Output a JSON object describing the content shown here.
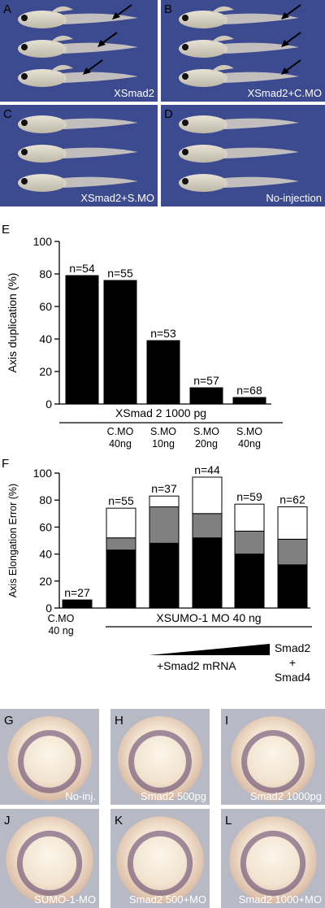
{
  "photo_panels": [
    {
      "letter": "A",
      "label": "XSmad2",
      "arrows": 3
    },
    {
      "letter": "B",
      "label": "XSmad2+C.MO",
      "arrows": 3
    },
    {
      "letter": "C",
      "label": "XSmad2+S.MO",
      "arrows": 0
    },
    {
      "letter": "D",
      "label": "No-injection",
      "arrows": 0
    }
  ],
  "embryo_panels": [
    {
      "letter": "G",
      "label": "No-inj."
    },
    {
      "letter": "H",
      "label": "Smad2 500pg"
    },
    {
      "letter": "I",
      "label": "Smad2 1000pg"
    },
    {
      "letter": "J",
      "label": "SUMO-1-MO"
    },
    {
      "letter": "K",
      "label": "Smad2 500+MO"
    },
    {
      "letter": "L",
      "label": "Smad2 1000+MO"
    }
  ],
  "colors": {
    "photo_background": "#3c4a8f",
    "embryo_background": "#b7b9c4",
    "bar_black": "#000000",
    "bar_gray": "#808080",
    "bar_white": "#ffffff"
  },
  "chart_data": [
    {
      "panel": "E",
      "type": "bar",
      "ylabel": "Axis duplication (%)",
      "ylim": [
        0,
        100
      ],
      "yticks": [
        0,
        20,
        40,
        60,
        80,
        100
      ],
      "group_label": "XSmad 2 1000 pg",
      "categories": [
        "",
        "C.MO 40ng",
        "S.MO 10ng",
        "S.MO 20ng",
        "S.MO 40ng"
      ],
      "category_lines": [
        [
          ""
        ],
        [
          "C.MO",
          "40ng"
        ],
        [
          "S.MO",
          "10ng"
        ],
        [
          "S.MO",
          "20ng"
        ],
        [
          "S.MO",
          "40ng"
        ]
      ],
      "values": [
        79,
        76,
        39,
        10,
        4
      ],
      "n_labels": [
        "n=54",
        "n=55",
        "n=53",
        "n=57",
        "n=68"
      ]
    },
    {
      "panel": "F",
      "type": "bar",
      "stacked": true,
      "ylabel": "Axis Elongation Error (%)",
      "ylim": [
        0,
        100
      ],
      "yticks": [
        0,
        20,
        40,
        60,
        80,
        100
      ],
      "group_label": "XSUMO-1 MO 40 ng",
      "ramp_label": "+Smad2 mRNA",
      "last_label": [
        "Smad2",
        "+",
        "Smad4"
      ],
      "categories": [
        "C.MO 40 ng",
        "",
        "",
        "",
        "",
        ""
      ],
      "category_lines": [
        [
          "C.MO",
          "40 ng"
        ],
        [
          ""
        ],
        [
          ""
        ],
        [
          ""
        ],
        [
          ""
        ],
        [
          ""
        ]
      ],
      "series": [
        {
          "values": [
            6,
            43,
            48,
            52,
            40,
            32
          ]
        },
        {
          "values": [
            0,
            9,
            27,
            18,
            17,
            19
          ]
        },
        {
          "values": [
            0,
            22,
            8,
            27,
            20,
            24
          ]
        }
      ],
      "n_labels": [
        "n=27",
        "n=55",
        "n=37",
        "n=44",
        "n=59",
        "n=62"
      ]
    }
  ]
}
